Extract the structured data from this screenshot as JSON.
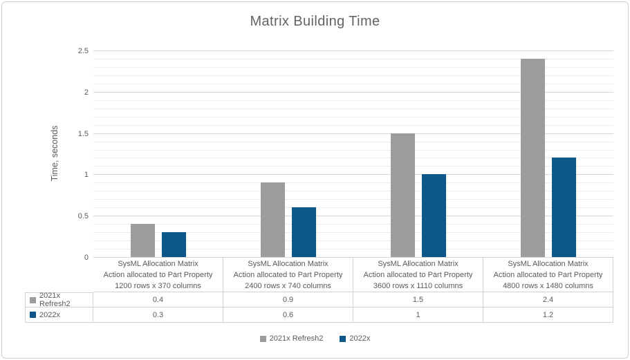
{
  "chart_data": {
    "type": "bar",
    "title": "Matrix Building Time",
    "ylabel": "Time, seconds",
    "xlabel": "",
    "ylim": [
      0,
      2.5
    ],
    "y_major_step": 0.5,
    "y_minor_step": 0.1,
    "y_tick_labels": [
      "0",
      "0.5",
      "1",
      "1.5",
      "2",
      "2.5"
    ],
    "grid": true,
    "legend_position": "bottom-center",
    "data_table_shown": true,
    "categories": [
      [
        "SysML Allocation Matrix",
        "Action allocated to Part Property",
        "1200 rows x 370 columns"
      ],
      [
        "SysML Allocation Matrix",
        "Action allocated to Part Property",
        "2400 rows x 740 columns"
      ],
      [
        "SysML Allocation Matrix",
        "Action allocated to Part Property",
        "3600 rows x 1110 columns"
      ],
      [
        "SysML Allocation Matrix",
        "Action allocated to Part Property",
        "4800 rows x 1480 columns"
      ]
    ],
    "series": [
      {
        "name": "2021x Refresh2",
        "color": "#9d9d9d",
        "values": [
          0.4,
          0.9,
          1.5,
          2.4
        ],
        "value_labels": [
          "0.4",
          "0.9",
          "1.5",
          "2.4"
        ]
      },
      {
        "name": "2022x",
        "color": "#0e578a",
        "values": [
          0.3,
          0.6,
          1,
          1.2
        ],
        "value_labels": [
          "0.3",
          "0.6",
          "1",
          "1.2"
        ]
      }
    ]
  },
  "colors": {
    "title_text": "#636363",
    "axis_text": "#595959",
    "grid_major": "#d6d6d6",
    "grid_minor": "#ececec",
    "table_border": "#d3d3d3",
    "frame_border": "#cdd0d3"
  }
}
